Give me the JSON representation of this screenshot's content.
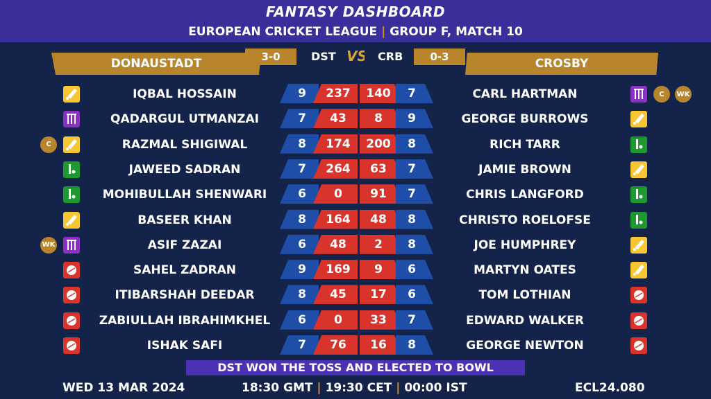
{
  "header": {
    "title": "FANTASY DASHBOARD",
    "league": "EUROPEAN CRICKET LEAGUE",
    "separator": "|",
    "match": "GROUP F, MATCH 10"
  },
  "team_left": {
    "name": "DONAUSTADT",
    "abbr": "DST",
    "record": "3-0"
  },
  "team_right": {
    "name": "CROSBY",
    "abbr": "CRB",
    "record": "0-3"
  },
  "vs_label": "VS",
  "colors": {
    "background": "#13234a",
    "header": "#3a2f9a",
    "gold": "#b8842c",
    "red": "#d9342b",
    "blue": "#1e4ea8",
    "batter": "#f6c634",
    "bowler": "#d9342b",
    "allrounder": "#1e9830",
    "keeper": "#8c2fc4"
  },
  "rows": [
    {
      "left": {
        "name": "IQBAL HOSSAIN",
        "role": "batter-icon",
        "badges": [],
        "credits": "9",
        "points": "237"
      },
      "right": {
        "name": "CARL HARTMAN",
        "role": "keeper-icon",
        "badges": [
          "C",
          "WK"
        ],
        "credits": "7",
        "points": "140"
      }
    },
    {
      "left": {
        "name": "QADARGUL UTMANZAI",
        "role": "keeper-icon",
        "badges": [],
        "credits": "7",
        "points": "43"
      },
      "right": {
        "name": "GEORGE BURROWS",
        "role": "batter-icon",
        "badges": [],
        "credits": "9",
        "points": "8"
      }
    },
    {
      "left": {
        "name": "RAZMAL SHIGIWAL",
        "role": "batter-icon",
        "badges": [
          "C"
        ],
        "credits": "8",
        "points": "174"
      },
      "right": {
        "name": "RICH TARR",
        "role": "allrounder-icon",
        "badges": [],
        "credits": "8",
        "points": "200"
      }
    },
    {
      "left": {
        "name": "JAWEED SADRAN",
        "role": "allrounder-icon",
        "badges": [],
        "credits": "7",
        "points": "264"
      },
      "right": {
        "name": "JAMIE BROWN",
        "role": "batter-icon",
        "badges": [],
        "credits": "7",
        "points": "63"
      }
    },
    {
      "left": {
        "name": "MOHIBULLAH SHENWARI",
        "role": "allrounder-icon",
        "badges": [],
        "credits": "6",
        "points": "0"
      },
      "right": {
        "name": "CHRIS LANGFORD",
        "role": "allrounder-icon",
        "badges": [],
        "credits": "7",
        "points": "91"
      }
    },
    {
      "left": {
        "name": "BASEER KHAN",
        "role": "batter-icon",
        "badges": [],
        "credits": "8",
        "points": "164"
      },
      "right": {
        "name": "CHRISTO ROELOFSE",
        "role": "allrounder-icon",
        "badges": [],
        "credits": "8",
        "points": "48"
      }
    },
    {
      "left": {
        "name": "ASIF ZAZAI",
        "role": "keeper-icon",
        "badges": [
          "WK"
        ],
        "credits": "6",
        "points": "48"
      },
      "right": {
        "name": "JOE HUMPHREY",
        "role": "batter-icon",
        "badges": [],
        "credits": "8",
        "points": "2"
      }
    },
    {
      "left": {
        "name": "SAHEL ZADRAN",
        "role": "bowler-icon",
        "badges": [],
        "credits": "9",
        "points": "169"
      },
      "right": {
        "name": "MARTYN OATES",
        "role": "batter-icon",
        "badges": [],
        "credits": "6",
        "points": "9"
      }
    },
    {
      "left": {
        "name": "ITIBARSHAH DEEDAR",
        "role": "bowler-icon",
        "badges": [],
        "credits": "8",
        "points": "45"
      },
      "right": {
        "name": "TOM LOTHIAN",
        "role": "bowler-icon",
        "badges": [],
        "credits": "6",
        "points": "17"
      }
    },
    {
      "left": {
        "name": "ZABIULLAH IBRAHIMKHEL",
        "role": "bowler-icon",
        "badges": [],
        "credits": "6",
        "points": "0"
      },
      "right": {
        "name": "EDWARD WALKER",
        "role": "bowler-icon",
        "badges": [],
        "credits": "7",
        "points": "33"
      }
    },
    {
      "left": {
        "name": "ISHAK SAFI",
        "role": "bowler-icon",
        "badges": [],
        "credits": "7",
        "points": "76"
      },
      "right": {
        "name": "GEORGE NEWTON",
        "role": "bowler-icon",
        "badges": [],
        "credits": "8",
        "points": "16"
      }
    }
  ],
  "toss": "DST WON THE TOSS AND ELECTED TO BOWL",
  "footer": {
    "date": "WED 13 MAR 2024",
    "time_gmt": "18:30 GMT",
    "time_cet": "19:30 CET",
    "time_ist": "00:00 IST",
    "separator": "|",
    "code": "ECL24.080"
  }
}
